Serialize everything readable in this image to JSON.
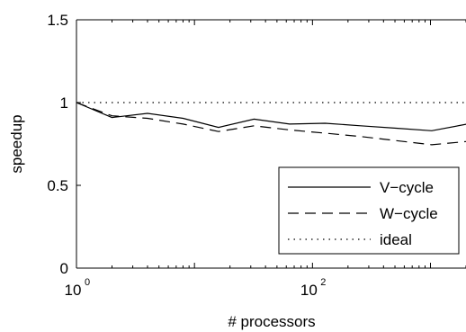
{
  "chart_data": {
    "type": "line",
    "xlabel": "# processors",
    "ylabel": "speedup",
    "xscale": "log",
    "xlim": [
      1,
      2000
    ],
    "ylim": [
      0,
      1.5
    ],
    "grid": false,
    "legend_position": "bottom-right",
    "x_ticks": [
      {
        "value": 1,
        "base": "10",
        "exp": "0"
      },
      {
        "value": 100,
        "base": "10",
        "exp": "2"
      }
    ],
    "y_ticks": [
      {
        "value": 0,
        "label": "0"
      },
      {
        "value": 0.5,
        "label": "0.5"
      },
      {
        "value": 1,
        "label": "1"
      },
      {
        "value": 1.5,
        "label": "1.5"
      }
    ],
    "series": [
      {
        "name": "V−cycle",
        "style": "solid",
        "x": [
          1,
          2,
          4,
          8,
          16,
          32,
          64,
          128,
          256,
          512,
          1024,
          2048
        ],
        "y": [
          1.0,
          0.91,
          0.935,
          0.905,
          0.85,
          0.9,
          0.87,
          0.875,
          0.86,
          0.845,
          0.83,
          0.87
        ]
      },
      {
        "name": "W−cycle",
        "style": "dashed",
        "x": [
          1,
          2,
          4,
          8,
          16,
          32,
          64,
          128,
          256,
          512,
          1024,
          2048
        ],
        "y": [
          1.0,
          0.92,
          0.905,
          0.87,
          0.825,
          0.86,
          0.835,
          0.815,
          0.795,
          0.77,
          0.745,
          0.765
        ]
      },
      {
        "name": "ideal",
        "style": "dotted",
        "x": [
          1,
          2048
        ],
        "y": [
          1.0,
          1.0
        ]
      }
    ]
  }
}
